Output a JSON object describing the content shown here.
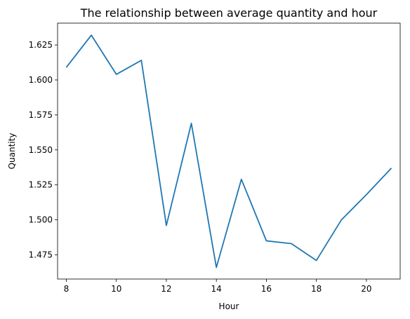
{
  "chart_data": {
    "type": "line",
    "title": "The relationship between average quantity and hour",
    "xlabel": "Hour",
    "ylabel": "Quantity",
    "xlim": [
      7.65,
      21.35
    ],
    "ylim": [
      1.4577,
      1.6406
    ],
    "xticks": [
      8,
      10,
      12,
      14,
      16,
      18,
      20
    ],
    "yticks": [
      1.475,
      1.5,
      1.525,
      1.55,
      1.575,
      1.6,
      1.625
    ],
    "xtick_labels": [
      "8",
      "10",
      "12",
      "14",
      "16",
      "18",
      "20"
    ],
    "ytick_labels": [
      "1.475",
      "1.500",
      "1.525",
      "1.550",
      "1.575",
      "1.600",
      "1.625"
    ],
    "grid": false,
    "series": [
      {
        "color": "#1f77b4",
        "x": [
          8,
          9,
          10,
          11,
          12,
          13,
          14,
          15,
          16,
          17,
          18,
          19,
          20,
          21
        ],
        "y": [
          1.609,
          1.632,
          1.604,
          1.614,
          1.496,
          1.569,
          1.466,
          1.529,
          1.485,
          1.483,
          1.471,
          1.5,
          1.518,
          1.537
        ]
      }
    ]
  }
}
